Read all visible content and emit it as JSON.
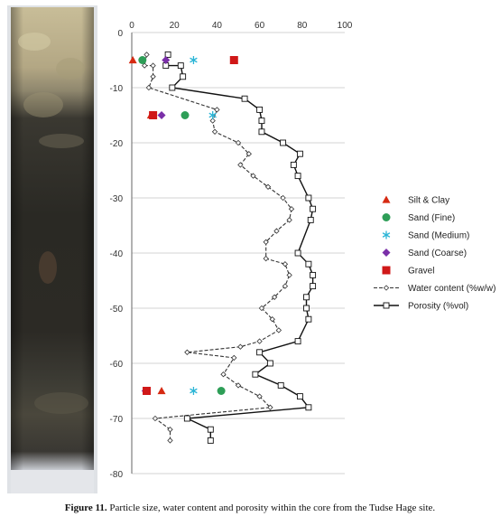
{
  "caption": {
    "label": "Figure 11.",
    "text": "Particle size, water content and porosity within the core from the Tudse Hage site."
  },
  "chart_data": {
    "type": "scatter",
    "x_ticks": [
      "0",
      "20",
      "40",
      "60",
      "80",
      "100"
    ],
    "y_ticks": [
      "0",
      "-10",
      "-20",
      "-30",
      "-40",
      "-50",
      "-60",
      "-70",
      "-80"
    ],
    "xlim": [
      0,
      100
    ],
    "ylim": [
      -80,
      0
    ],
    "grid": "horizontal",
    "legend_position": "right",
    "scatter_series": [
      {
        "name": "Silt & Clay",
        "marker": "triangle",
        "color": "#d62a12",
        "points": [
          [
            0.5,
            -5
          ],
          [
            9,
            -15
          ],
          [
            14,
            -65
          ]
        ]
      },
      {
        "name": "Sand (Fine)",
        "marker": "circle",
        "color": "#2e9e57",
        "points": [
          [
            5,
            -5
          ],
          [
            25,
            -15
          ],
          [
            42,
            -65
          ]
        ]
      },
      {
        "name": "Sand (Medium)",
        "marker": "asterisk",
        "color": "#2bb5d6",
        "points": [
          [
            29,
            -5
          ],
          [
            38,
            -15
          ],
          [
            29,
            -65
          ]
        ]
      },
      {
        "name": "Sand (Coarse)",
        "marker": "diamond",
        "color": "#7a2fa8",
        "points": [
          [
            16,
            -5
          ],
          [
            14,
            -15
          ],
          [
            6.5,
            -65
          ]
        ]
      },
      {
        "name": "Gravel",
        "marker": "square",
        "color": "#d01818",
        "points": [
          [
            48,
            -5
          ],
          [
            10,
            -15
          ],
          [
            7,
            -65
          ]
        ]
      }
    ],
    "line_series": [
      {
        "name": "Water content (%w/w)",
        "style": "dashed",
        "marker": "small-diamond",
        "points": [
          [
            7,
            -4
          ],
          [
            6,
            -6
          ],
          [
            10,
            -6
          ],
          [
            10,
            -8
          ],
          [
            8,
            -10
          ],
          [
            40,
            -14
          ],
          [
            38,
            -16
          ],
          [
            39,
            -18
          ],
          [
            50,
            -20
          ],
          [
            55,
            -22
          ],
          [
            51,
            -24
          ],
          [
            57,
            -26
          ],
          [
            64,
            -28
          ],
          [
            71,
            -30
          ],
          [
            75,
            -32
          ],
          [
            74,
            -34
          ],
          [
            68,
            -36
          ],
          [
            63,
            -38
          ],
          [
            63,
            -41
          ],
          [
            72,
            -42
          ],
          [
            74,
            -44
          ],
          [
            72,
            -46
          ],
          [
            67,
            -48
          ],
          [
            61,
            -50
          ],
          [
            66,
            -52
          ],
          [
            69,
            -54
          ],
          [
            60,
            -56
          ],
          [
            51,
            -57
          ],
          [
            26,
            -58
          ],
          [
            48,
            -59
          ],
          [
            43,
            -62
          ],
          [
            50,
            -64
          ],
          [
            60,
            -66
          ],
          [
            65,
            -68
          ],
          [
            11,
            -70
          ],
          [
            18,
            -72
          ],
          [
            18,
            -74
          ]
        ]
      },
      {
        "name": "Porosity (%vol)",
        "style": "solid",
        "marker": "open-square",
        "points": [
          [
            17,
            -4
          ],
          [
            16,
            -6
          ],
          [
            23,
            -6
          ],
          [
            24,
            -8
          ],
          [
            19,
            -10
          ],
          [
            53,
            -12
          ],
          [
            60,
            -14
          ],
          [
            61,
            -16
          ],
          [
            61,
            -18
          ],
          [
            71,
            -20
          ],
          [
            79,
            -22
          ],
          [
            76,
            -24
          ],
          [
            78,
            -26
          ],
          [
            83,
            -30
          ],
          [
            85,
            -32
          ],
          [
            84,
            -34
          ],
          [
            78,
            -40
          ],
          [
            83,
            -42
          ],
          [
            85,
            -44
          ],
          [
            85,
            -46
          ],
          [
            82,
            -48
          ],
          [
            82,
            -50
          ],
          [
            83,
            -52
          ],
          [
            78,
            -56
          ],
          [
            60,
            -58
          ],
          [
            65,
            -60
          ],
          [
            58,
            -62
          ],
          [
            70,
            -64
          ],
          [
            79,
            -66
          ],
          [
            83,
            -68
          ],
          [
            26,
            -70
          ],
          [
            37,
            -72
          ],
          [
            37,
            -74
          ]
        ]
      }
    ]
  }
}
